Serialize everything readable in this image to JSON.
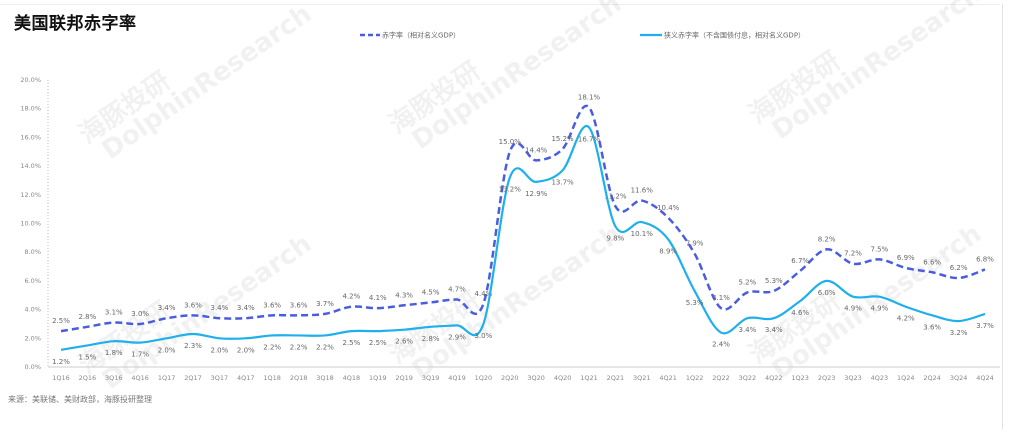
{
  "title": "美国联邦赤字率",
  "source": "来源：美联储、美财政部，海豚投研整理",
  "watermark": "海豚投研 DolphinResearch",
  "chart_data": {
    "type": "line",
    "title": "美国联邦赤字率",
    "x": [
      "1Q16",
      "2Q16",
      "3Q16",
      "4Q16",
      "1Q17",
      "2Q17",
      "3Q17",
      "4Q17",
      "1Q18",
      "2Q18",
      "3Q18",
      "4Q18",
      "1Q19",
      "2Q19",
      "3Q19",
      "4Q19",
      "1Q20",
      "2Q20",
      "3Q20",
      "4Q20",
      "1Q21",
      "2Q21",
      "3Q21",
      "4Q21",
      "1Q22",
      "2Q22",
      "3Q22",
      "4Q22",
      "1Q23",
      "2Q23",
      "3Q23",
      "4Q23",
      "1Q24",
      "2Q24",
      "3Q24",
      "4Q24"
    ],
    "ylim": [
      0,
      20
    ],
    "yticks": [
      "0.0%",
      "2.0%",
      "4.0%",
      "6.0%",
      "8.0%",
      "10.0%",
      "12.0%",
      "14.0%",
      "16.0%",
      "18.0%",
      "20.0%"
    ],
    "legend_position": "top",
    "grid": false,
    "series": [
      {
        "name": "赤字率（相对名义GDP）",
        "style": "dashed",
        "color": "#4a5de0",
        "values": [
          2.5,
          2.8,
          3.1,
          3.0,
          3.4,
          3.6,
          3.4,
          3.4,
          3.6,
          3.6,
          3.7,
          4.2,
          4.1,
          4.3,
          4.5,
          4.7,
          4.4,
          15.0,
          14.4,
          15.2,
          18.1,
          11.2,
          11.6,
          10.4,
          7.9,
          4.1,
          5.2,
          5.3,
          6.7,
          8.2,
          7.2,
          7.5,
          6.9,
          6.6,
          6.2,
          6.8
        ]
      },
      {
        "name": "狭义赤字率（不含国债付息，相对名义GDP）",
        "style": "solid",
        "color": "#1fb0ec",
        "values": [
          1.2,
          1.5,
          1.8,
          1.7,
          2.0,
          2.3,
          2.0,
          2.0,
          2.2,
          2.2,
          2.2,
          2.5,
          2.5,
          2.6,
          2.8,
          2.9,
          3.0,
          13.2,
          12.9,
          13.7,
          16.7,
          9.8,
          10.1,
          8.9,
          5.3,
          2.4,
          3.4,
          3.4,
          4.6,
          6.0,
          4.9,
          4.9,
          4.2,
          3.6,
          3.2,
          3.7
        ]
      }
    ]
  }
}
